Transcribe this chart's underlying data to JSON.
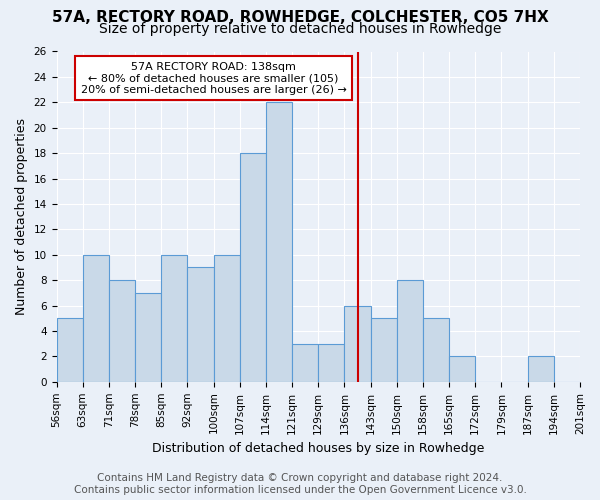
{
  "title1": "57A, RECTORY ROAD, ROWHEDGE, COLCHESTER, CO5 7HX",
  "title2": "Size of property relative to detached houses in Rowhedge",
  "xlabel": "Distribution of detached houses by size in Rowhedge",
  "ylabel": "Number of detached properties",
  "bin_edges": [
    "56sqm",
    "63sqm",
    "71sqm",
    "78sqm",
    "85sqm",
    "92sqm",
    "100sqm",
    "107sqm",
    "114sqm",
    "121sqm",
    "129sqm",
    "136sqm",
    "143sqm",
    "150sqm",
    "158sqm",
    "165sqm",
    "172sqm",
    "179sqm",
    "187sqm",
    "194sqm",
    "201sqm"
  ],
  "bar_heights": [
    5,
    10,
    8,
    7,
    10,
    9,
    10,
    18,
    22,
    3,
    3,
    6,
    5,
    8,
    5,
    2,
    0,
    0,
    2,
    0
  ],
  "bar_color": "#c9d9e8",
  "bar_edgecolor": "#5b9bd5",
  "vline_x": 11.0,
  "vline_color": "#cc0000",
  "annotation_text": "57A RECTORY ROAD: 138sqm\n← 80% of detached houses are smaller (105)\n20% of semi-detached houses are larger (26) →",
  "annotation_box_color": "#cc0000",
  "ylim": [
    0,
    26
  ],
  "yticks": [
    0,
    2,
    4,
    6,
    8,
    10,
    12,
    14,
    16,
    18,
    20,
    22,
    24,
    26
  ],
  "footer1": "Contains HM Land Registry data © Crown copyright and database right 2024.",
  "footer2": "Contains public sector information licensed under the Open Government Licence v3.0.",
  "bg_color": "#eaf0f8",
  "plot_bg_color": "#eaf0f8",
  "grid_color": "#ffffff",
  "title1_fontsize": 11,
  "title2_fontsize": 10,
  "xlabel_fontsize": 9,
  "ylabel_fontsize": 9,
  "tick_fontsize": 7.5,
  "footer_fontsize": 7.5
}
